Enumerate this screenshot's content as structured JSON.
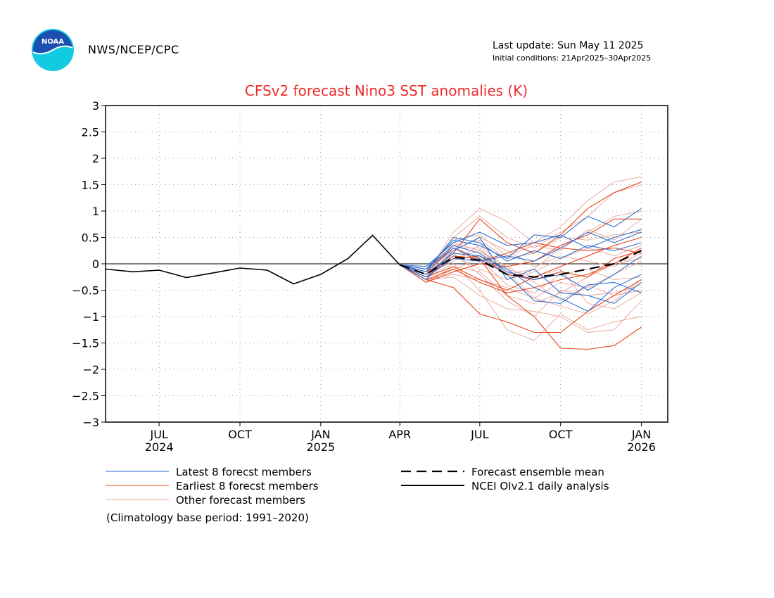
{
  "header": {
    "org": "NWS/NCEP/CPC",
    "last_update": "Last update: Sun May 11 2025",
    "initial_conditions": "Initial conditions: 21Apr2025–30Apr2025",
    "logo_text": "NOAA",
    "logo_icon": "noaa-logo-icon"
  },
  "colors": {
    "title": "#ee2b2b",
    "latest": "#2f6fd0",
    "earliest": "#e8451d",
    "other": "#e8a596",
    "mean": "#000000",
    "obs": "#000000",
    "grid": "#999999"
  },
  "chart_data": {
    "type": "line",
    "title": "CFSv2 forecast Nino3 SST anomalies (K)",
    "xlabel": "",
    "ylabel": "",
    "ylim": [
      -3,
      3
    ],
    "xlim": [
      "2024-05-01",
      "2026-01-31"
    ],
    "grid": true,
    "zero_line": true,
    "yticks": [
      3,
      2.5,
      2,
      1.5,
      1,
      0.5,
      0,
      -0.5,
      -1,
      -1.5,
      -2,
      -2.5,
      -3
    ],
    "ytick_labels": [
      "3",
      "2.5",
      "2",
      "1.5",
      "1",
      "0.5",
      "0",
      "−0.5",
      "−1",
      "−1.5",
      "−2",
      "−2.5",
      "−3"
    ],
    "xticks": [
      {
        "date": "2024-07-01",
        "label": "JUL",
        "year": "2024"
      },
      {
        "date": "2024-10-01",
        "label": "OCT",
        "year": ""
      },
      {
        "date": "2025-01-01",
        "label": "JAN",
        "year": "2025"
      },
      {
        "date": "2025-04-01",
        "label": "APR",
        "year": ""
      },
      {
        "date": "2025-07-01",
        "label": "JUL",
        "year": ""
      },
      {
        "date": "2025-10-01",
        "label": "OCT",
        "year": ""
      },
      {
        "date": "2026-01-01",
        "label": "JAN",
        "year": "2026"
      }
    ],
    "forecast_x": [
      "2025-04-01",
      "2025-05-01",
      "2025-06-01",
      "2025-07-01",
      "2025-08-01",
      "2025-09-01",
      "2025-10-01",
      "2025-11-01",
      "2025-12-01",
      "2026-01-01"
    ],
    "observed": {
      "name": "NCEI OIv2.1 daily analysis",
      "x": [
        "2024-05-01",
        "2024-06-01",
        "2024-07-01",
        "2024-08-01",
        "2024-09-01",
        "2024-10-01",
        "2024-11-01",
        "2024-12-01",
        "2025-01-01",
        "2025-02-01",
        "2025-03-01",
        "2025-04-01"
      ],
      "values": [
        -0.1,
        -0.15,
        -0.12,
        -0.26,
        -0.17,
        -0.08,
        -0.12,
        -0.38,
        -0.2,
        0.1,
        0.54,
        -0.02
      ]
    },
    "ensemble_mean": {
      "name": "Forecast ensemble mean",
      "values": [
        -0.02,
        -0.2,
        0.13,
        0.07,
        -0.2,
        -0.25,
        -0.2,
        -0.1,
        0.0,
        0.25
      ]
    },
    "member_groups": [
      {
        "name": "Latest 8 forecst members",
        "color_key": "latest",
        "members": [
          [
            -0.02,
            -0.1,
            0.45,
            0.35,
            0.1,
            0.55,
            0.5,
            0.9,
            0.7,
            1.05
          ],
          [
            -0.02,
            -0.05,
            0.4,
            0.6,
            0.35,
            0.4,
            0.55,
            0.3,
            0.5,
            0.65
          ],
          [
            -0.02,
            -0.15,
            0.3,
            0.1,
            -0.2,
            -0.7,
            -0.75,
            -0.4,
            -0.35,
            -0.55
          ],
          [
            -0.02,
            -0.2,
            0.2,
            0.15,
            -0.1,
            -0.45,
            -0.65,
            -0.9,
            -0.45,
            -0.2
          ],
          [
            -0.02,
            -0.1,
            0.35,
            0.2,
            -0.15,
            -0.3,
            -0.2,
            -0.5,
            -0.2,
            0.15
          ],
          [
            -0.02,
            -0.25,
            0.1,
            0.05,
            0.15,
            0.05,
            0.3,
            0.6,
            0.4,
            0.6
          ],
          [
            -0.02,
            -0.15,
            0.5,
            0.4,
            0.05,
            0.25,
            0.1,
            0.35,
            0.25,
            0.4
          ],
          [
            -0.02,
            -0.3,
            0.25,
            0.5,
            -0.3,
            -0.1,
            -0.55,
            -0.6,
            -0.75,
            -0.35
          ]
        ]
      },
      {
        "name": "Earliest 8 forecst members",
        "color_key": "earliest",
        "members": [
          [
            -0.02,
            -0.25,
            0.15,
            0.1,
            -0.6,
            -1.0,
            -1.6,
            -1.62,
            -1.55,
            -1.2
          ],
          [
            -0.02,
            -0.3,
            -0.45,
            -0.95,
            -1.1,
            -1.3,
            -1.3,
            -0.9,
            -0.6,
            -0.3
          ],
          [
            -0.02,
            -0.2,
            0.2,
            0.85,
            0.4,
            0.2,
            0.55,
            1.05,
            1.35,
            1.55
          ],
          [
            -0.02,
            -0.3,
            -0.1,
            -0.35,
            -0.55,
            -0.45,
            -0.3,
            -0.2,
            0.0,
            0.3
          ],
          [
            -0.02,
            -0.35,
            -0.15,
            0.0,
            -0.05,
            0.05,
            0.35,
            0.55,
            0.85,
            0.85
          ],
          [
            -0.02,
            -0.15,
            0.1,
            0.15,
            -0.2,
            -0.3,
            -0.15,
            -0.25,
            0.1,
            0.25
          ],
          [
            -0.02,
            -0.25,
            -0.05,
            -0.3,
            -0.5,
            -0.25,
            -0.05,
            0.15,
            0.35,
            0.5
          ],
          [
            -0.02,
            -0.1,
            0.3,
            0.05,
            0.2,
            0.4,
            0.3,
            0.25,
            0.3,
            0.2
          ]
        ]
      },
      {
        "name": "Other forecast members",
        "color_key": "other",
        "members": [
          [
            -0.02,
            -0.2,
            0.6,
            1.05,
            0.8,
            0.4,
            0.7,
            1.2,
            1.55,
            1.65
          ],
          [
            -0.02,
            -0.15,
            0.5,
            0.9,
            0.5,
            0.3,
            0.6,
            0.9,
            1.35,
            1.5
          ],
          [
            -0.02,
            -0.3,
            0.3,
            0.3,
            -0.2,
            -0.1,
            0.3,
            0.6,
            0.9,
            1.0
          ],
          [
            -0.02,
            -0.25,
            0.0,
            -0.5,
            -1.25,
            -1.45,
            -0.95,
            -1.25,
            -1.1,
            -1.0
          ],
          [
            -0.02,
            -0.1,
            0.2,
            -0.2,
            -0.7,
            -1.0,
            -0.5,
            -0.6,
            -0.55,
            -0.4
          ],
          [
            -0.02,
            -0.3,
            -0.25,
            -0.6,
            -0.85,
            -0.9,
            -1.0,
            -1.3,
            -1.25,
            -0.7
          ],
          [
            -0.02,
            -0.2,
            0.35,
            0.45,
            0.1,
            0.2,
            0.5,
            0.45,
            0.55,
            0.6
          ],
          [
            -0.02,
            -0.35,
            -0.1,
            0.1,
            -0.4,
            -0.55,
            -0.2,
            -0.1,
            -0.3,
            -0.25
          ],
          [
            -0.02,
            -0.15,
            0.15,
            -0.1,
            -0.3,
            -0.15,
            0.1,
            0.3,
            0.15,
            0.35
          ],
          [
            -0.02,
            -0.25,
            0.4,
            0.25,
            -0.05,
            -0.35,
            -0.7,
            -0.4,
            -0.6,
            -0.5
          ],
          [
            -0.02,
            -0.2,
            0.1,
            0.25,
            -0.15,
            -0.65,
            -0.8,
            -0.95,
            -0.7,
            -0.3
          ],
          [
            -0.02,
            -0.3,
            -0.2,
            -0.3,
            -0.45,
            -0.65,
            -0.35,
            -0.45,
            -0.2,
            0.05
          ],
          [
            -0.02,
            -0.1,
            0.25,
            0.5,
            0.25,
            -0.05,
            0.15,
            0.05,
            -0.05,
            0.2
          ],
          [
            -0.02,
            -0.2,
            0.05,
            0.35,
            -0.1,
            -0.25,
            -0.1,
            -0.75,
            -0.85,
            -0.55
          ],
          [
            -0.02,
            -0.35,
            -0.05,
            -0.15,
            -0.6,
            -0.75,
            -0.55,
            -0.25,
            0.0,
            0.1
          ],
          [
            -0.02,
            -0.15,
            0.45,
            0.55,
            0.15,
            0.35,
            0.25,
            0.65,
            0.45,
            0.85
          ]
        ]
      }
    ],
    "legend": [
      {
        "label": "Latest 8 forecst members",
        "style": "thin",
        "color_key": "latest"
      },
      {
        "label": "Earliest 8 forecst members",
        "style": "thin",
        "color_key": "earliest"
      },
      {
        "label": "Other forecast members",
        "style": "thin",
        "color_key": "other"
      },
      {
        "label": "Forecast ensemble mean",
        "style": "dashed",
        "color_key": "mean"
      },
      {
        "label": "NCEI OIv2.1 daily analysis",
        "style": "solid",
        "color_key": "obs"
      }
    ],
    "legend_placement": "below",
    "note": "(Climatology base period: 1991–2020)"
  }
}
